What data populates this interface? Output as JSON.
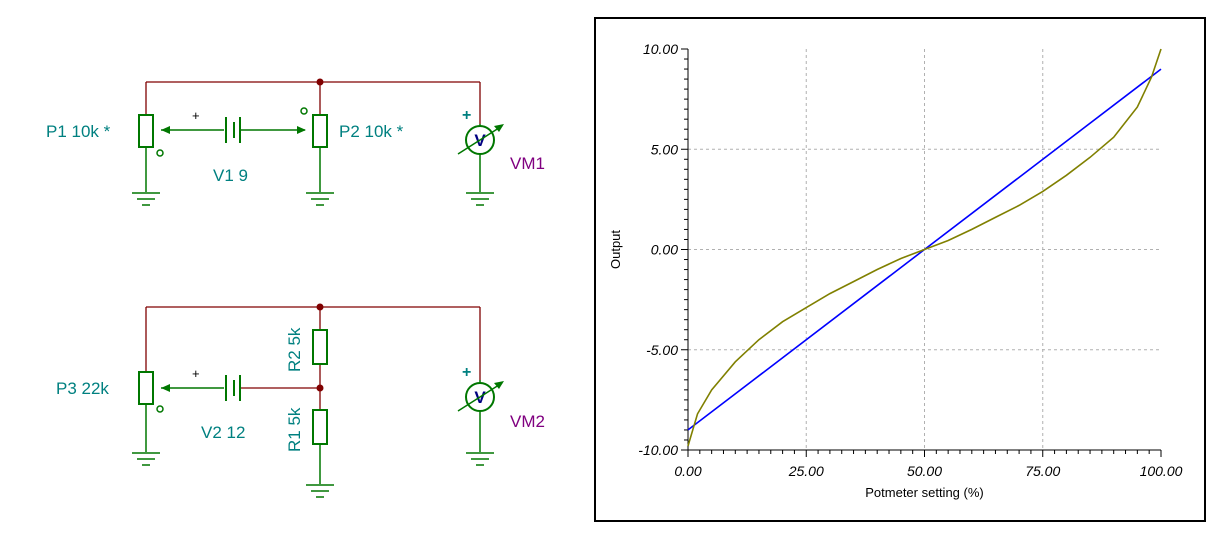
{
  "circuit1": {
    "p1_label": "P1 10k *",
    "p2_label": "P2 10k *",
    "v1_label": "V1 9",
    "vm1_label": "VM1",
    "meter_symbol": "V",
    "plus": "+"
  },
  "circuit2": {
    "p3_label": "P3 22k",
    "v2_label": "V2 12",
    "r2_label": "R2 5k",
    "r1_label": "R1 5k",
    "vm2_label": "VM2",
    "meter_symbol": "V",
    "plus": "+"
  },
  "colors": {
    "component": "#007700",
    "label": "#008080",
    "meter_label": "#800080",
    "wire": "#800000",
    "meter_letter": "#000080",
    "series_linear": "#0000ff",
    "series_curve": "#808000"
  },
  "chart_data": {
    "type": "line",
    "xlabel": "Potmeter setting (%)",
    "ylabel": "Output",
    "xlim": [
      0,
      100
    ],
    "ylim": [
      -10,
      10
    ],
    "x_ticks": [
      "0.00",
      "25.00",
      "50.00",
      "75.00",
      "100.00"
    ],
    "y_ticks": [
      "10.00",
      "5.00",
      "0.00",
      "-5.00",
      "-10.00"
    ],
    "grid": true,
    "series": [
      {
        "color": "#0000ff",
        "x": [
          0,
          100
        ],
        "y": [
          -9.0,
          9.0
        ]
      },
      {
        "color": "#808000",
        "x": [
          0,
          2,
          5,
          10,
          15,
          20,
          25,
          30,
          35,
          40,
          45,
          50,
          55,
          60,
          65,
          70,
          75,
          80,
          85,
          90,
          95,
          98,
          100
        ],
        "y": [
          -9.8,
          -8.2,
          -7.0,
          -5.6,
          -4.5,
          -3.6,
          -2.9,
          -2.2,
          -1.6,
          -1.0,
          -0.45,
          0.0,
          0.45,
          1.0,
          1.6,
          2.2,
          2.9,
          3.7,
          4.6,
          5.6,
          7.1,
          8.6,
          10.0
        ]
      }
    ]
  }
}
